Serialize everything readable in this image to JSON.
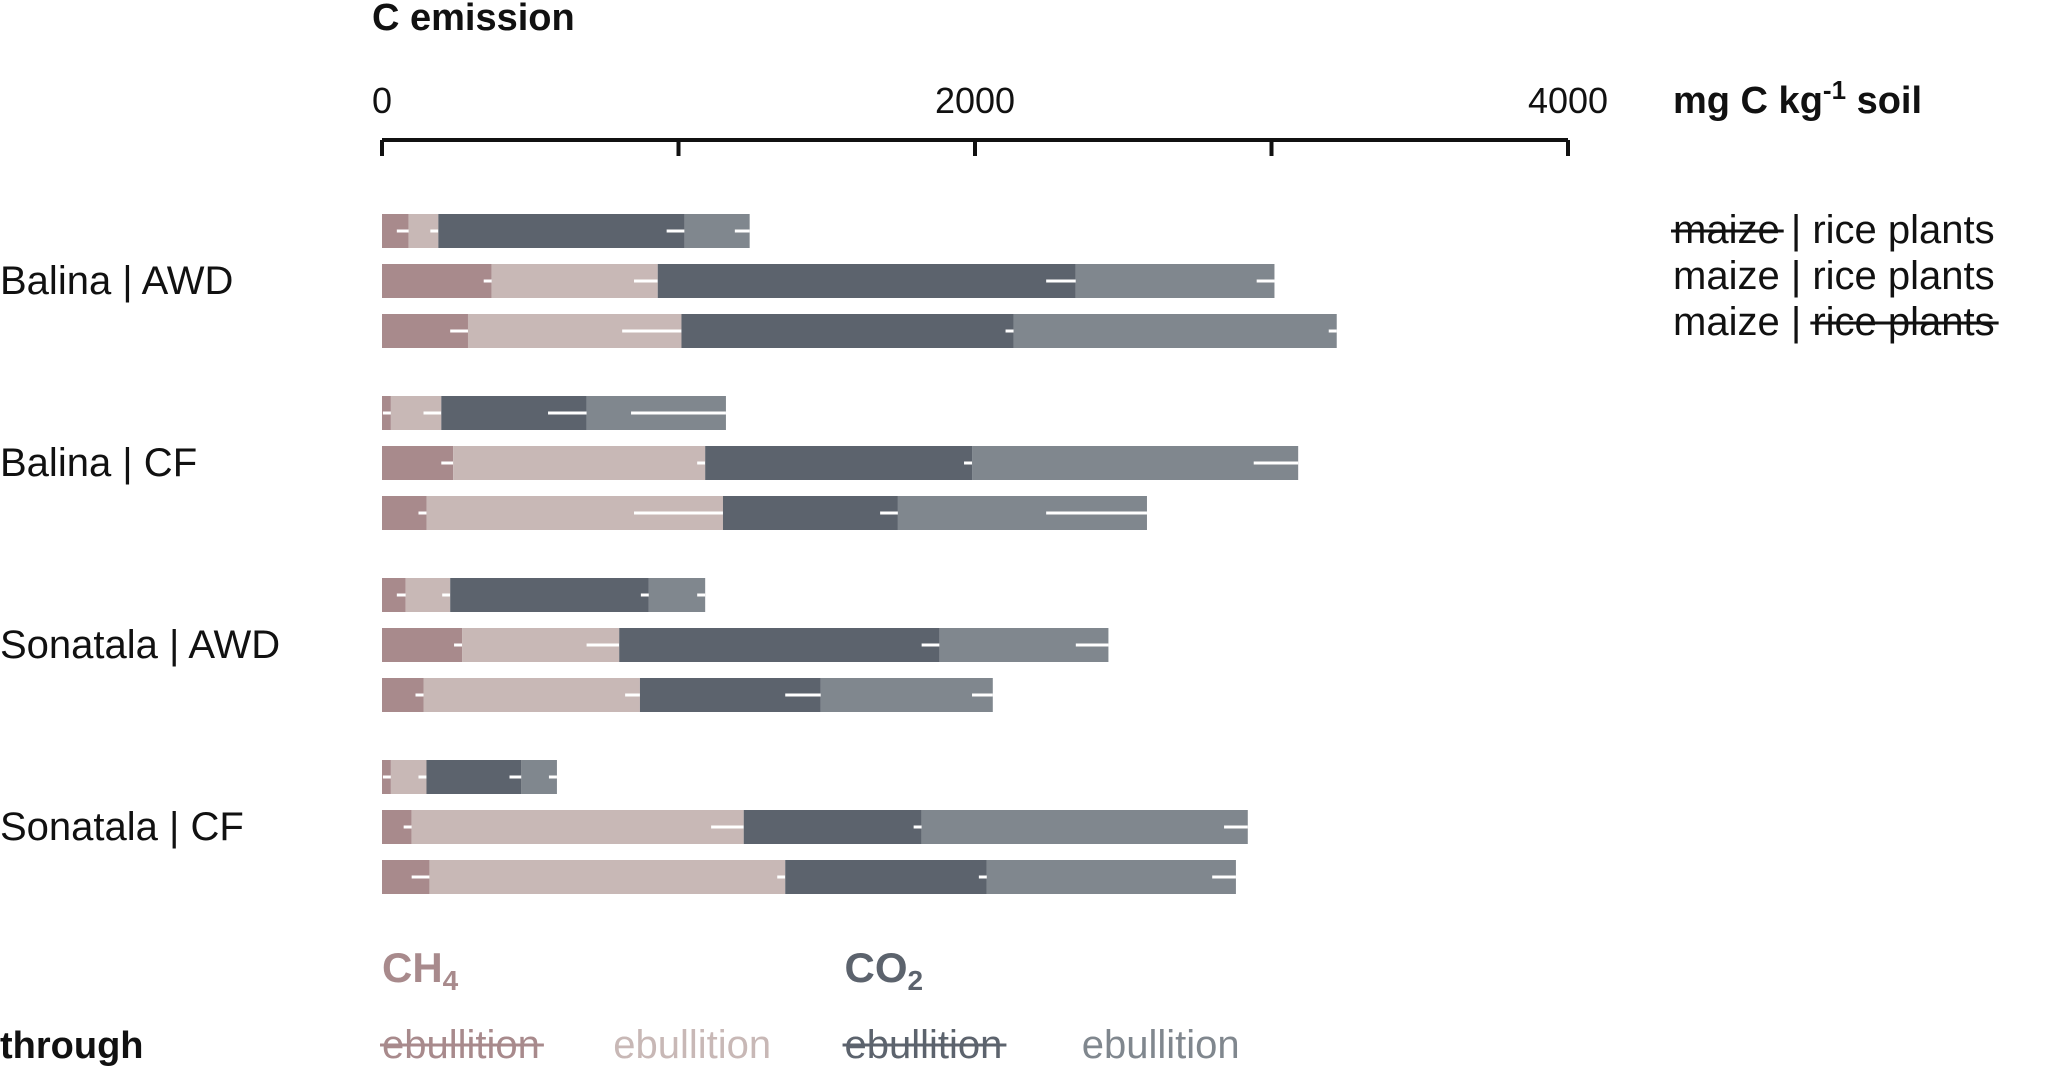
{
  "chart_data": {
    "type": "bar",
    "stacked": true,
    "orientation": "horizontal",
    "title": "C emission",
    "unit_label": "mg C kg-1 soil",
    "x_axis_position": "top",
    "xlim": [
      0,
      4000
    ],
    "x_ticks": [
      0,
      2000,
      4000
    ],
    "x_tick_labels": [
      "0",
      "2000",
      "4000"
    ],
    "x_minor_ticks": [
      1000,
      3000
    ],
    "grid": false,
    "groups": [
      "Balina | AWD",
      "Balina | CF",
      "Sonatala | AWD",
      "Sonatala | CF"
    ],
    "row_legend": [
      {
        "maize": "maize",
        "rice": "rice plants",
        "maize_struck": true,
        "rice_struck": false
      },
      {
        "maize": "maize",
        "rice": "rice plants",
        "maize_struck": false,
        "rice_struck": false
      },
      {
        "maize": "maize",
        "rice": "rice plants",
        "maize_struck": false,
        "rice_struck": true
      }
    ],
    "row_separator": "|",
    "gases": [
      {
        "name": "CH",
        "sub": "4",
        "color": "#a88a8c"
      },
      {
        "name": "CO",
        "sub": "2",
        "color": "#5c636d"
      }
    ],
    "through_label": "through",
    "series_legend": [
      {
        "label": "ebullition",
        "struck": true,
        "color": "#a88a8c"
      },
      {
        "label": "ebullition",
        "struck": false,
        "color": "#c8b8b6"
      },
      {
        "label": "ebullition",
        "struck": true,
        "color": "#5c636d"
      },
      {
        "label": "ebullition",
        "struck": false,
        "color": "#80878e"
      }
    ],
    "series_colors": [
      "#a88a8c",
      "#c8b8b6",
      "#5c636d",
      "#80878e"
    ],
    "rows": [
      {
        "group": 0,
        "values": [
          90,
          100,
          830,
          220
        ],
        "errors": [
          40,
          0,
          60,
          50
        ]
      },
      {
        "group": 0,
        "values": [
          370,
          560,
          1410,
          670
        ],
        "errors": [
          20,
          80,
          100,
          60
        ]
      },
      {
        "group": 0,
        "values": [
          290,
          720,
          1120,
          1090
        ],
        "errors": [
          60,
          200,
          0,
          0
        ]
      },
      {
        "group": 1,
        "values": [
          30,
          170,
          490,
          470
        ],
        "errors": [
          0,
          60,
          130,
          320
        ]
      },
      {
        "group": 1,
        "values": [
          240,
          850,
          900,
          1100
        ],
        "errors": [
          40,
          0,
          0,
          150
        ]
      },
      {
        "group": 1,
        "values": [
          150,
          1000,
          590,
          840
        ],
        "errors": [
          20,
          300,
          60,
          340
        ]
      },
      {
        "group": 2,
        "values": [
          80,
          150,
          670,
          190
        ],
        "errors": [
          30,
          0,
          0,
          0
        ]
      },
      {
        "group": 2,
        "values": [
          270,
          530,
          1080,
          570
        ],
        "errors": [
          0,
          110,
          60,
          110
        ]
      },
      {
        "group": 2,
        "values": [
          140,
          730,
          610,
          580
        ],
        "errors": [
          0,
          50,
          120,
          70
        ]
      },
      {
        "group": 3,
        "values": [
          30,
          120,
          320,
          120
        ],
        "errors": [
          0,
          0,
          40,
          0
        ]
      },
      {
        "group": 3,
        "values": [
          100,
          1120,
          600,
          1100
        ],
        "errors": [
          20,
          110,
          0,
          80
        ]
      },
      {
        "group": 3,
        "values": [
          160,
          1200,
          680,
          840
        ],
        "errors": [
          60,
          0,
          0,
          80
        ]
      }
    ]
  }
}
